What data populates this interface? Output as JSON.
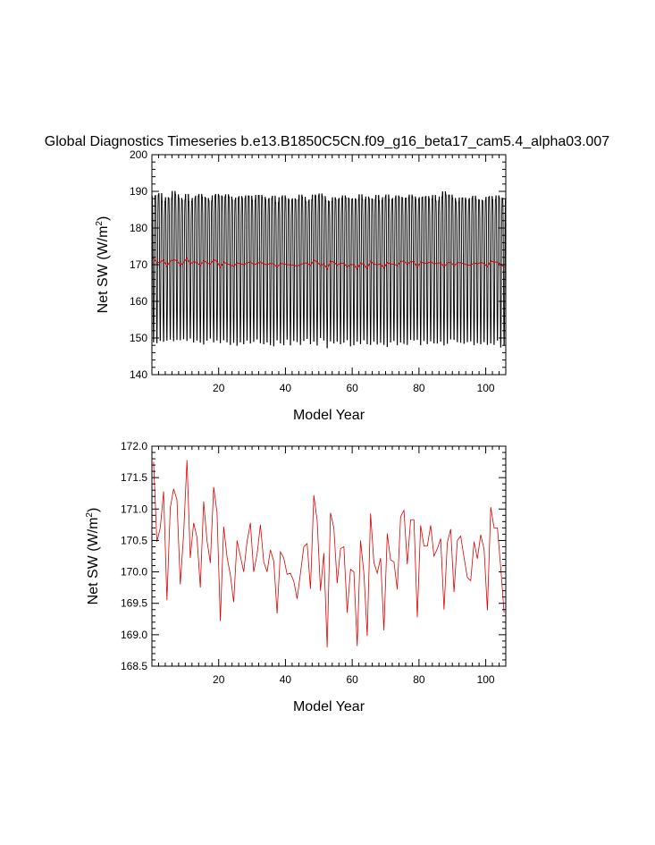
{
  "title": "Global Diagnostics Timeseries b.e13.B1850C5CN.f09_g16_beta17_cam5.4_alpha03.007",
  "colors": {
    "monthly": "#000000",
    "annual": "#e00000",
    "axis": "#000000"
  },
  "chart_data": [
    {
      "type": "line",
      "xlabel": "Model Year",
      "ylabel_prefix": "Net SW (W/m",
      "ylabel_sup": "2",
      "ylabel_suffix": ")",
      "xlim": [
        0,
        106
      ],
      "ylim": [
        140,
        200
      ],
      "xticks": [
        20,
        40,
        60,
        80,
        100
      ],
      "yticks": [
        140,
        150,
        160,
        170,
        180,
        190,
        200
      ],
      "ytick_labels": [
        "140",
        "150",
        "160",
        "170",
        "180",
        "190",
        "200"
      ],
      "grid": false,
      "series": [
        {
          "kind": "monthly-seasonal-cycle",
          "color": "#000000",
          "years": 106,
          "seasonal_max": [
            188.6,
            188.9,
            189.4,
            187.2,
            188.3,
            188.1,
            190.0,
            189.1,
            188.1,
            187.6,
            189.2,
            187.2,
            188.1,
            188.7,
            189.2,
            188.4,
            188.1,
            187.4,
            188.8,
            189.2,
            188.8,
            188.5,
            189.1,
            188.5,
            187.6,
            188.2,
            188.6,
            188.1,
            188.8,
            188.7,
            187.5,
            188.9,
            188.9,
            188.4,
            187.8,
            188.1,
            188.7,
            186.9,
            188.3,
            188.8,
            188.0,
            187.6,
            188.0,
            187.7,
            189.0,
            188.4,
            187.2,
            187.7,
            189.0,
            188.8,
            189.3,
            188.6,
            187.4,
            187.2,
            188.3,
            187.8,
            188.1,
            188.8,
            188.2,
            187.9,
            188.0,
            187.8,
            189.1,
            187.7,
            188.5,
            188.0,
            187.8,
            188.9,
            187.4,
            188.3,
            189.0,
            187.7,
            188.1,
            188.8,
            188.4,
            188.1,
            188.2,
            189.0,
            188.5,
            187.8,
            188.3,
            188.5,
            188.6,
            187.9,
            188.9,
            187.3,
            188.5,
            189.9,
            189.0,
            189.0,
            188.1,
            187.1,
            188.2,
            188.2,
            187.6,
            188.1,
            188.7,
            187.8,
            187.6,
            187.4,
            188.4,
            188.6,
            187.7,
            188.8,
            188.2,
            187.8
          ],
          "seasonal_min": [
            148.1,
            147.9,
            148.5,
            148.3,
            148.6,
            148.9,
            148.4,
            148.8,
            148.7,
            149.0,
            148.5,
            149.2,
            148.1,
            148.6,
            148.0,
            147.5,
            148.6,
            149.2,
            148.1,
            148.6,
            147.9,
            148.7,
            148.1,
            147.4,
            148.0,
            147.2,
            148.1,
            147.6,
            148.6,
            147.8,
            148.3,
            148.9,
            147.9,
            147.6,
            148.1,
            147.3,
            147.0,
            148.7,
            147.8,
            147.3,
            148.9,
            147.3,
            148.5,
            148.2,
            147.4,
            148.5,
            149.1,
            147.6,
            148.3,
            147.2,
            149.3,
            148.6,
            146.5,
            148.4,
            147.8,
            148.3,
            147.6,
            148.0,
            148.7,
            147.0,
            147.3,
            148.3,
            147.6,
            148.7,
            147.6,
            147.4,
            148.3,
            147.5,
            148.0,
            147.4,
            146.8,
            148.1,
            148.5,
            147.3,
            148.1,
            147.7,
            147.4,
            148.8,
            148.6,
            148.8,
            147.3,
            148.5,
            147.6,
            148.4,
            147.8,
            147.8,
            148.3,
            147.2,
            147.7,
            148.9,
            148.8,
            148.2,
            148.0,
            147.7,
            148.2,
            148.4,
            147.3,
            147.9,
            147.6,
            148.2,
            147.4,
            147.8,
            147.4,
            148.6,
            146.7,
            147.2
          ]
        },
        {
          "kind": "annual-mean",
          "color": "#e00000",
          "ref": "annual"
        }
      ]
    },
    {
      "type": "line",
      "xlabel": "Model Year",
      "ylabel_prefix": "Net SW (W/m",
      "ylabel_sup": "2",
      "ylabel_suffix": ")",
      "xlim": [
        0,
        106
      ],
      "ylim": [
        168.5,
        172.0
      ],
      "xticks": [
        20,
        40,
        60,
        80,
        100
      ],
      "yticks": [
        168.5,
        169.0,
        169.5,
        170.0,
        170.5,
        171.0,
        171.5,
        172.0
      ],
      "ytick_labels": [
        "168.5",
        "169.0",
        "169.5",
        "170.0",
        "170.5",
        "171.0",
        "171.5",
        "172.0"
      ],
      "grid": false,
      "series": [
        {
          "kind": "annual-mean",
          "color": "#e00000",
          "x_start": 0.5,
          "values": [
            171.75,
            170.48,
            170.7,
            171.28,
            169.55,
            171.02,
            171.32,
            171.15,
            169.8,
            170.6,
            171.78,
            170.22,
            170.78,
            170.55,
            169.75,
            171.12,
            170.5,
            170.14,
            171.35,
            170.95,
            169.22,
            170.72,
            170.24,
            169.95,
            169.52,
            170.5,
            170.25,
            170.0,
            170.48,
            170.78,
            170.0,
            170.28,
            170.75,
            170.16,
            170.0,
            170.35,
            170.17,
            169.34,
            170.32,
            170.22,
            169.96,
            169.98,
            169.85,
            169.57,
            169.98,
            170.4,
            170.45,
            169.73,
            171.22,
            170.82,
            169.7,
            170.3,
            168.8,
            170.94,
            170.7,
            169.82,
            170.37,
            170.4,
            169.35,
            170.04,
            170.0,
            168.82,
            170.5,
            169.98,
            168.98,
            170.93,
            170.15,
            169.98,
            170.22,
            169.07,
            170.61,
            170.19,
            170.16,
            169.72,
            170.88,
            170.98,
            170.12,
            170.83,
            170.83,
            169.28,
            170.74,
            170.41,
            170.41,
            170.74,
            170.25,
            170.37,
            170.53,
            169.4,
            170.47,
            170.68,
            169.68,
            170.5,
            170.57,
            170.23,
            169.91,
            169.86,
            170.48,
            170.21,
            170.59,
            170.36,
            169.39,
            171.03,
            170.7,
            170.7,
            170.06,
            169.35
          ]
        }
      ]
    }
  ]
}
